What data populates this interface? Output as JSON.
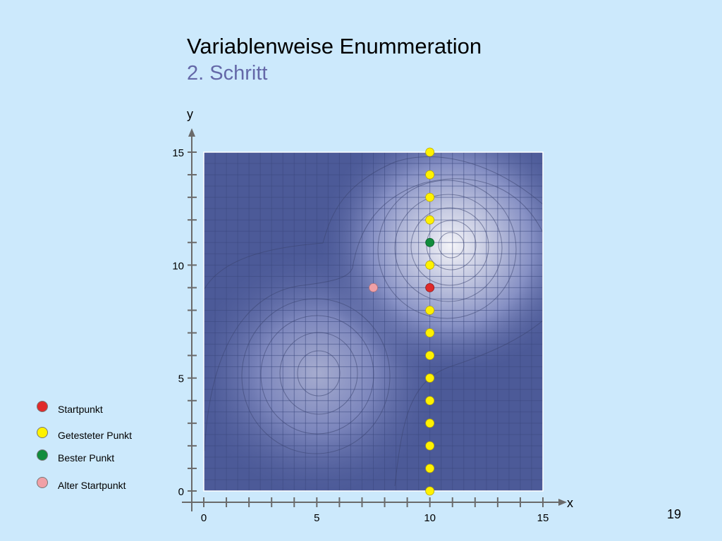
{
  "slide": {
    "title": "Variablenweise Enummeration",
    "subtitle": "2. Schritt",
    "page_number": "19"
  },
  "legend": [
    {
      "label": "Startpunkt",
      "color": "#e02a2a"
    },
    {
      "label": "Getesteter Punkt",
      "color": "#fff200"
    },
    {
      "label": "Bester Punkt",
      "color": "#118c3c"
    },
    {
      "label": "Alter Startpunkt",
      "color": "#f0a0a6"
    }
  ],
  "chart_data": {
    "type": "scatter",
    "xlabel": "x",
    "ylabel": "y",
    "xlim": [
      0,
      15
    ],
    "ylim": [
      0,
      15
    ],
    "x_ticks": [
      0,
      5,
      10,
      15
    ],
    "y_ticks": [
      0,
      5,
      10,
      15
    ],
    "surface": {
      "peaks": [
        {
          "x": 11,
          "y": 11
        },
        {
          "x": 5,
          "y": 5
        }
      ],
      "color_low": "#4c5a98",
      "color_high": "#f4f4f8"
    },
    "tested_points": {
      "color": "#fff200",
      "x": 10,
      "y": [
        0,
        1,
        2,
        3,
        4,
        5,
        6,
        7,
        8,
        10,
        12,
        13,
        14,
        15
      ]
    },
    "start_point": {
      "x": 10,
      "y": 9,
      "color": "#e02a2a"
    },
    "best_point": {
      "x": 10,
      "y": 11,
      "color": "#118c3c"
    },
    "old_start_point": {
      "x": 7.5,
      "y": 9,
      "color": "#f0a0a6"
    }
  }
}
